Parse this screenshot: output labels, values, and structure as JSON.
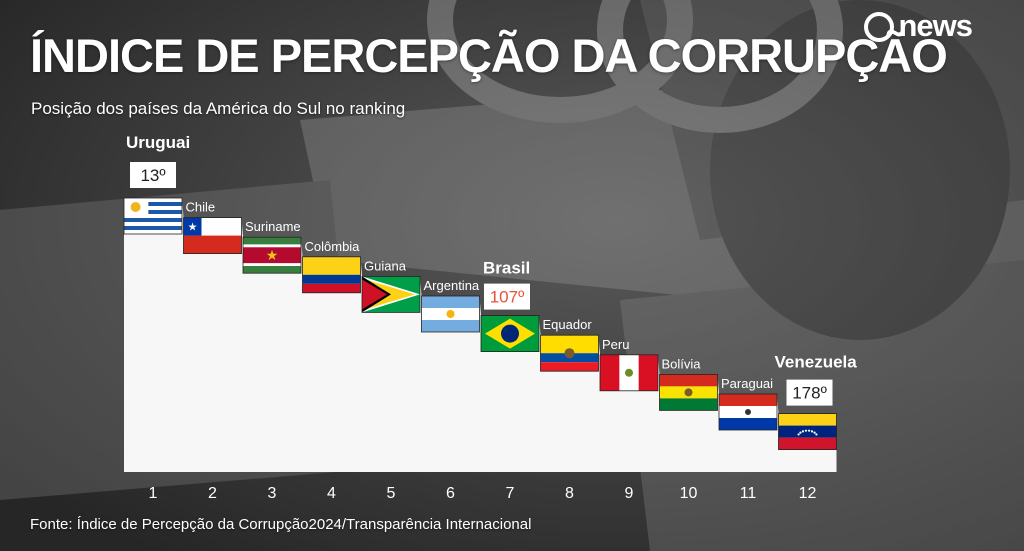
{
  "title": "ÍNDICE DE PERCEPÇÃO DA CORRUPÇÃO",
  "subtitle": "Posição dos países da América do Sul no ranking",
  "brand": "news",
  "source": "Fonte: Índice de Percepção da Corrupção2024/Transparência Internacional",
  "colors": {
    "text": "#ffffff",
    "panel": "#f7f7f7",
    "highlight_rank": "#e8503a"
  },
  "chart_data": {
    "type": "bar",
    "categories": [
      "1",
      "2",
      "3",
      "4",
      "5",
      "6",
      "7",
      "8",
      "9",
      "10",
      "11",
      "12"
    ],
    "countries": [
      "Uruguai",
      "Chile",
      "Suriname",
      "Colômbia",
      "Guiana",
      "Argentina",
      "Brasil",
      "Equador",
      "Peru",
      "Bolívia",
      "Paraguai",
      "Venezuela"
    ],
    "flags": [
      "uruguay-flag",
      "chile-flag",
      "suriname-flag",
      "colombia-flag",
      "guyana-flag",
      "argentina-flag",
      "brazil-flag",
      "ecuador-flag",
      "peru-flag",
      "bolivia-flag",
      "paraguay-flag",
      "venezuela-flag"
    ],
    "highlights": [
      {
        "index": 0,
        "country": "Uruguai",
        "rank_label": "13º"
      },
      {
        "index": 6,
        "country": "Brasil",
        "rank_label": "107º"
      },
      {
        "index": 11,
        "country": "Venezuela",
        "rank_label": "178º"
      }
    ]
  }
}
